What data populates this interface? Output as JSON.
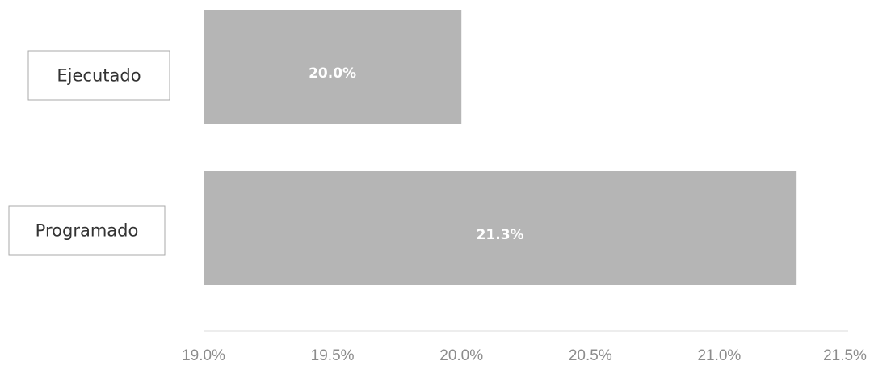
{
  "chart_data": {
    "type": "bar",
    "orientation": "horizontal",
    "categories": [
      "Ejecutado",
      "Programado"
    ],
    "values": [
      20.0,
      21.3
    ],
    "data_labels": [
      "20.0%",
      "21.3%"
    ],
    "xlim": [
      19.0,
      21.5
    ],
    "xticks": [
      19.0,
      19.5,
      20.0,
      20.5,
      21.0,
      21.5
    ],
    "xtick_labels": [
      "19.0%",
      "19.5%",
      "20.0%",
      "20.5%",
      "21.0%",
      "21.5%"
    ],
    "grid": false,
    "legend": "none",
    "bar_color": "#b5b5b5",
    "label_color": "#ffffff"
  }
}
